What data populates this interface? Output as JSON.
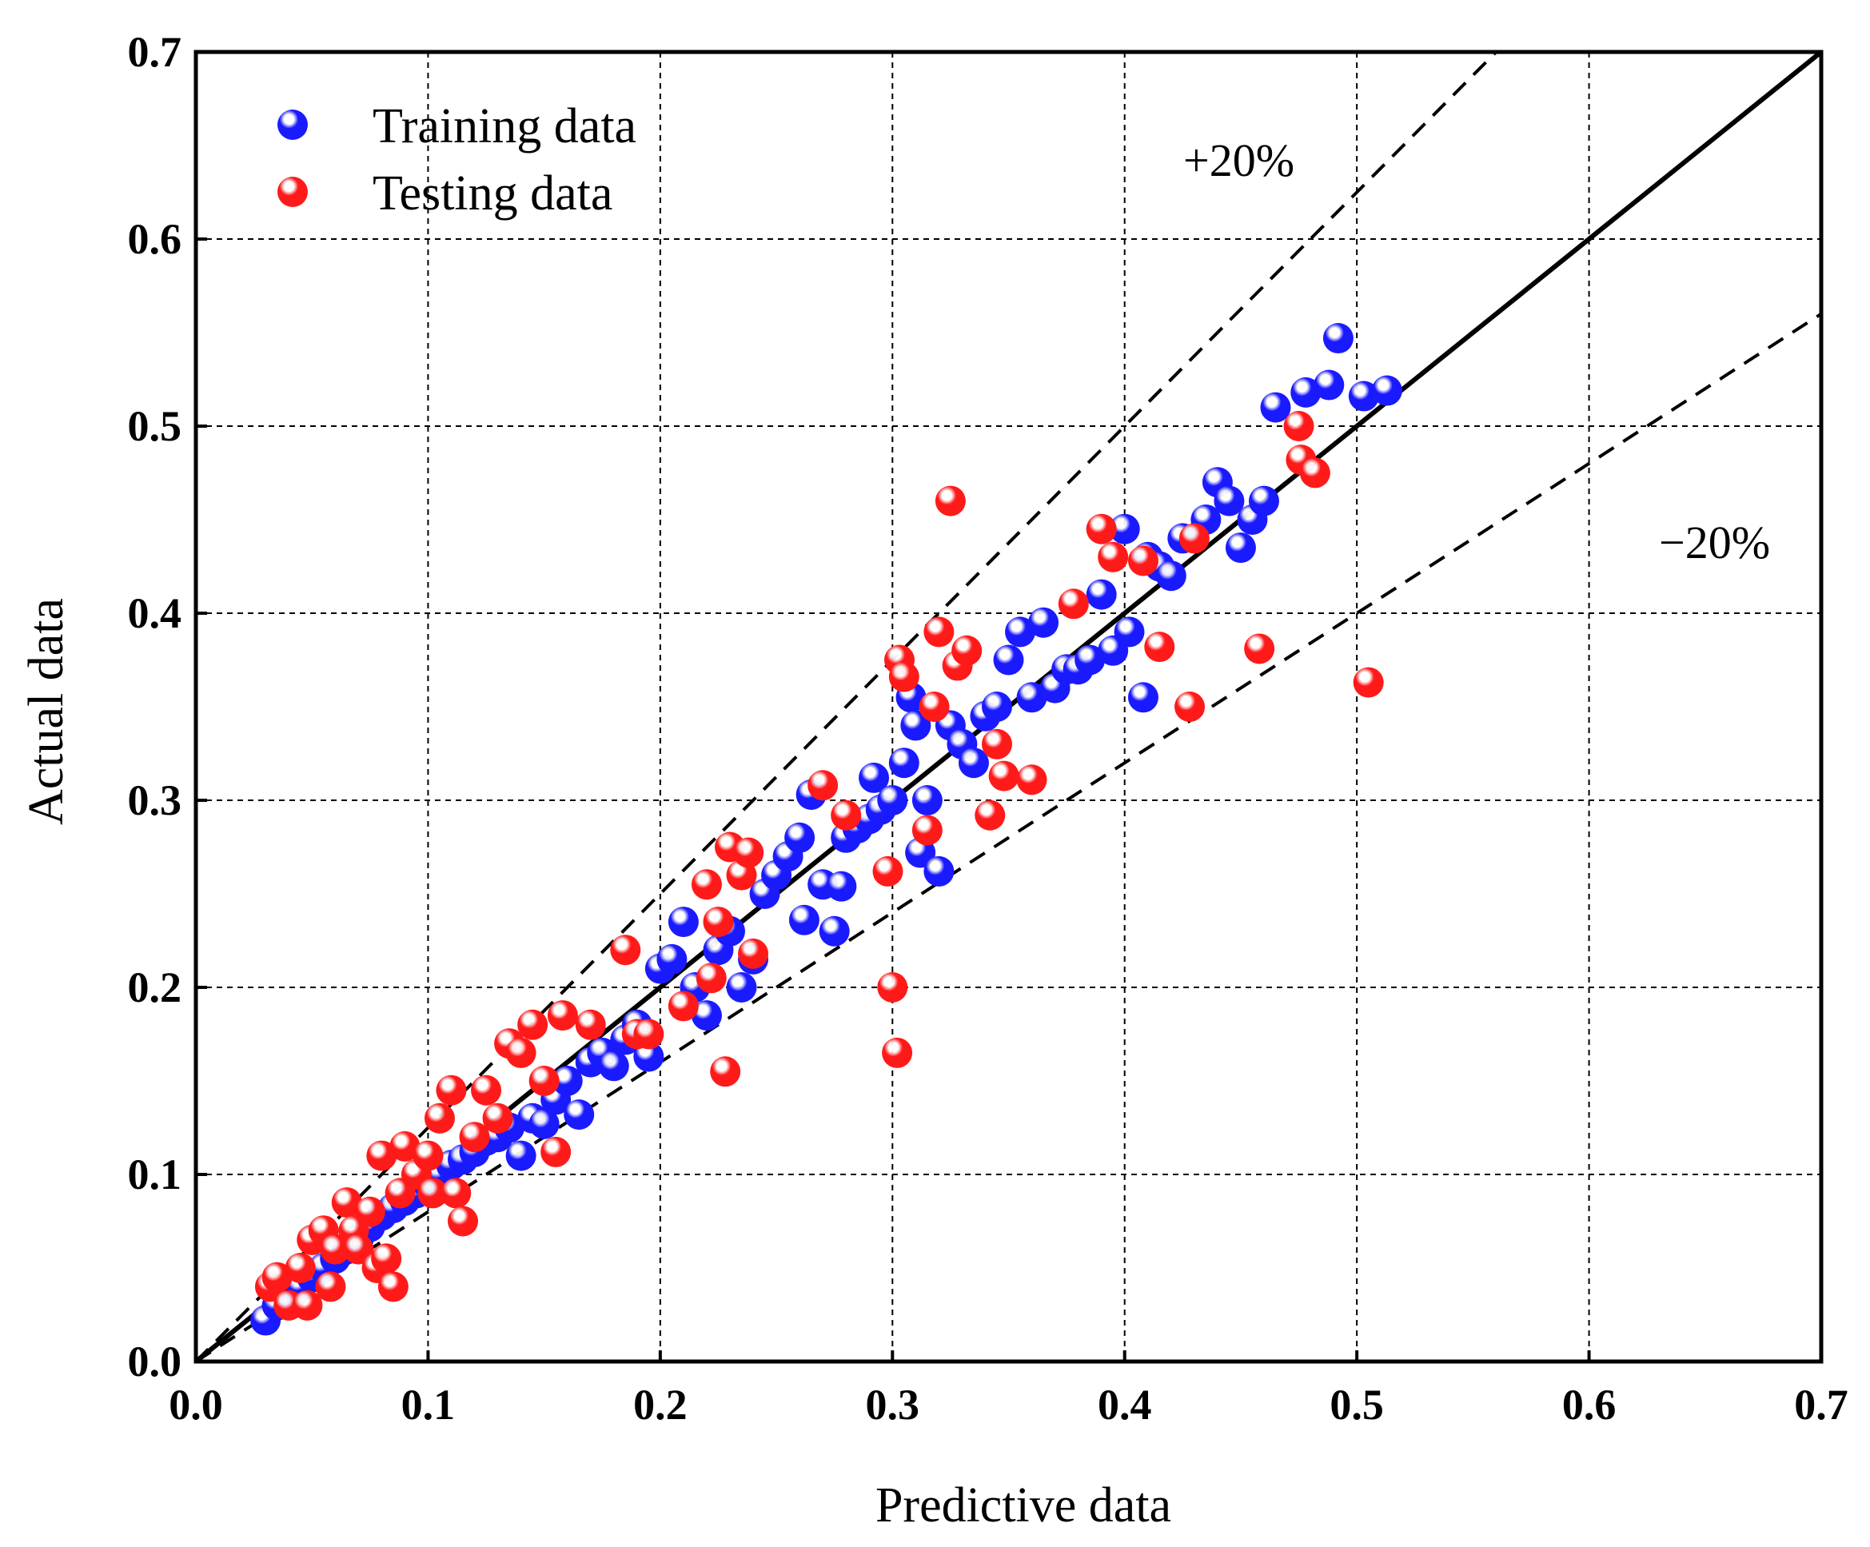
{
  "chart_data": {
    "type": "scatter",
    "title": "",
    "xlabel": "Predictive data",
    "ylabel": "Actual data",
    "xlim": [
      0.0,
      0.7
    ],
    "ylim": [
      0.0,
      0.7
    ],
    "xticks": [
      "0.0",
      "0.1",
      "0.2",
      "0.3",
      "0.4",
      "0.5",
      "0.6",
      "0.7"
    ],
    "yticks": [
      "0.0",
      "0.1",
      "0.2",
      "0.3",
      "0.4",
      "0.5",
      "0.6",
      "0.7"
    ],
    "grid": true,
    "legend_position": "top-left",
    "colors": {
      "training": "#1a1aff",
      "testing": "#ff1a1a"
    },
    "reference_lines": [
      {
        "name": "y=x",
        "slope": 1.0,
        "style": "solid"
      },
      {
        "name": "+20%",
        "slope": 1.25,
        "style": "dashed"
      },
      {
        "name": "-20%",
        "slope": 0.8,
        "style": "dashed"
      }
    ],
    "annotations": {
      "upper": "+20%",
      "lower": "−20%"
    },
    "series": [
      {
        "name": "Training data",
        "points": [
          [
            0.03,
            0.022
          ],
          [
            0.035,
            0.03
          ],
          [
            0.045,
            0.04
          ],
          [
            0.05,
            0.045
          ],
          [
            0.055,
            0.05
          ],
          [
            0.06,
            0.055
          ],
          [
            0.065,
            0.06
          ],
          [
            0.07,
            0.065
          ],
          [
            0.075,
            0.072
          ],
          [
            0.08,
            0.078
          ],
          [
            0.085,
            0.082
          ],
          [
            0.09,
            0.086
          ],
          [
            0.095,
            0.09
          ],
          [
            0.1,
            0.095
          ],
          [
            0.105,
            0.1
          ],
          [
            0.11,
            0.105
          ],
          [
            0.115,
            0.108
          ],
          [
            0.12,
            0.112
          ],
          [
            0.125,
            0.118
          ],
          [
            0.13,
            0.12
          ],
          [
            0.135,
            0.125
          ],
          [
            0.14,
            0.11
          ],
          [
            0.145,
            0.13
          ],
          [
            0.15,
            0.127
          ],
          [
            0.155,
            0.14
          ],
          [
            0.16,
            0.15
          ],
          [
            0.165,
            0.132
          ],
          [
            0.17,
            0.16
          ],
          [
            0.175,
            0.165
          ],
          [
            0.18,
            0.158
          ],
          [
            0.185,
            0.172
          ],
          [
            0.19,
            0.18
          ],
          [
            0.195,
            0.163
          ],
          [
            0.2,
            0.21
          ],
          [
            0.205,
            0.215
          ],
          [
            0.21,
            0.235
          ],
          [
            0.215,
            0.2
          ],
          [
            0.22,
            0.185
          ],
          [
            0.225,
            0.22
          ],
          [
            0.23,
            0.23
          ],
          [
            0.235,
            0.2
          ],
          [
            0.24,
            0.215
          ],
          [
            0.245,
            0.25
          ],
          [
            0.25,
            0.26
          ],
          [
            0.255,
            0.27
          ],
          [
            0.26,
            0.28
          ],
          [
            0.262,
            0.236
          ],
          [
            0.265,
            0.303
          ],
          [
            0.27,
            0.255
          ],
          [
            0.275,
            0.23
          ],
          [
            0.278,
            0.254
          ],
          [
            0.28,
            0.28
          ],
          [
            0.285,
            0.285
          ],
          [
            0.29,
            0.29
          ],
          [
            0.292,
            0.312
          ],
          [
            0.295,
            0.295
          ],
          [
            0.3,
            0.3
          ],
          [
            0.305,
            0.32
          ],
          [
            0.308,
            0.355
          ],
          [
            0.31,
            0.34
          ],
          [
            0.312,
            0.272
          ],
          [
            0.315,
            0.3
          ],
          [
            0.32,
            0.262
          ],
          [
            0.325,
            0.34
          ],
          [
            0.33,
            0.33
          ],
          [
            0.335,
            0.32
          ],
          [
            0.34,
            0.345
          ],
          [
            0.345,
            0.35
          ],
          [
            0.35,
            0.375
          ],
          [
            0.355,
            0.39
          ],
          [
            0.36,
            0.355
          ],
          [
            0.365,
            0.395
          ],
          [
            0.37,
            0.36
          ],
          [
            0.375,
            0.37
          ],
          [
            0.38,
            0.37
          ],
          [
            0.385,
            0.375
          ],
          [
            0.39,
            0.41
          ],
          [
            0.395,
            0.38
          ],
          [
            0.4,
            0.445
          ],
          [
            0.402,
            0.39
          ],
          [
            0.408,
            0.355
          ],
          [
            0.41,
            0.43
          ],
          [
            0.415,
            0.425
          ],
          [
            0.42,
            0.42
          ],
          [
            0.425,
            0.44
          ],
          [
            0.435,
            0.45
          ],
          [
            0.44,
            0.47
          ],
          [
            0.445,
            0.46
          ],
          [
            0.45,
            0.435
          ],
          [
            0.455,
            0.45
          ],
          [
            0.46,
            0.46
          ],
          [
            0.465,
            0.51
          ],
          [
            0.478,
            0.518
          ],
          [
            0.488,
            0.522
          ],
          [
            0.492,
            0.547
          ],
          [
            0.503,
            0.516
          ],
          [
            0.513,
            0.519
          ]
        ]
      },
      {
        "name": "Testing data",
        "points": [
          [
            0.032,
            0.04
          ],
          [
            0.035,
            0.045
          ],
          [
            0.04,
            0.03
          ],
          [
            0.045,
            0.05
          ],
          [
            0.048,
            0.03
          ],
          [
            0.05,
            0.065
          ],
          [
            0.055,
            0.07
          ],
          [
            0.058,
            0.04
          ],
          [
            0.06,
            0.06
          ],
          [
            0.065,
            0.085
          ],
          [
            0.068,
            0.07
          ],
          [
            0.07,
            0.06
          ],
          [
            0.075,
            0.08
          ],
          [
            0.078,
            0.05
          ],
          [
            0.08,
            0.11
          ],
          [
            0.082,
            0.055
          ],
          [
            0.085,
            0.04
          ],
          [
            0.088,
            0.09
          ],
          [
            0.09,
            0.115
          ],
          [
            0.095,
            0.1
          ],
          [
            0.1,
            0.11
          ],
          [
            0.102,
            0.09
          ],
          [
            0.105,
            0.13
          ],
          [
            0.11,
            0.145
          ],
          [
            0.112,
            0.09
          ],
          [
            0.115,
            0.075
          ],
          [
            0.12,
            0.12
          ],
          [
            0.125,
            0.145
          ],
          [
            0.13,
            0.13
          ],
          [
            0.135,
            0.17
          ],
          [
            0.14,
            0.165
          ],
          [
            0.145,
            0.18
          ],
          [
            0.15,
            0.15
          ],
          [
            0.155,
            0.112
          ],
          [
            0.158,
            0.185
          ],
          [
            0.17,
            0.18
          ],
          [
            0.185,
            0.22
          ],
          [
            0.19,
            0.175
          ],
          [
            0.195,
            0.175
          ],
          [
            0.21,
            0.19
          ],
          [
            0.22,
            0.255
          ],
          [
            0.222,
            0.205
          ],
          [
            0.225,
            0.235
          ],
          [
            0.228,
            0.155
          ],
          [
            0.23,
            0.275
          ],
          [
            0.235,
            0.26
          ],
          [
            0.238,
            0.272
          ],
          [
            0.24,
            0.218
          ],
          [
            0.27,
            0.308
          ],
          [
            0.28,
            0.292
          ],
          [
            0.298,
            0.262
          ],
          [
            0.3,
            0.2
          ],
          [
            0.302,
            0.165
          ],
          [
            0.303,
            0.375
          ],
          [
            0.305,
            0.366
          ],
          [
            0.315,
            0.284
          ],
          [
            0.318,
            0.35
          ],
          [
            0.32,
            0.39
          ],
          [
            0.325,
            0.46
          ],
          [
            0.328,
            0.372
          ],
          [
            0.332,
            0.38
          ],
          [
            0.342,
            0.292
          ],
          [
            0.345,
            0.33
          ],
          [
            0.348,
            0.313
          ],
          [
            0.36,
            0.311
          ],
          [
            0.378,
            0.405
          ],
          [
            0.39,
            0.445
          ],
          [
            0.395,
            0.43
          ],
          [
            0.408,
            0.428
          ],
          [
            0.415,
            0.382
          ],
          [
            0.428,
            0.35
          ],
          [
            0.43,
            0.44
          ],
          [
            0.458,
            0.381
          ],
          [
            0.475,
            0.5
          ],
          [
            0.476,
            0.482
          ],
          [
            0.482,
            0.475
          ],
          [
            0.505,
            0.363
          ]
        ]
      }
    ]
  }
}
